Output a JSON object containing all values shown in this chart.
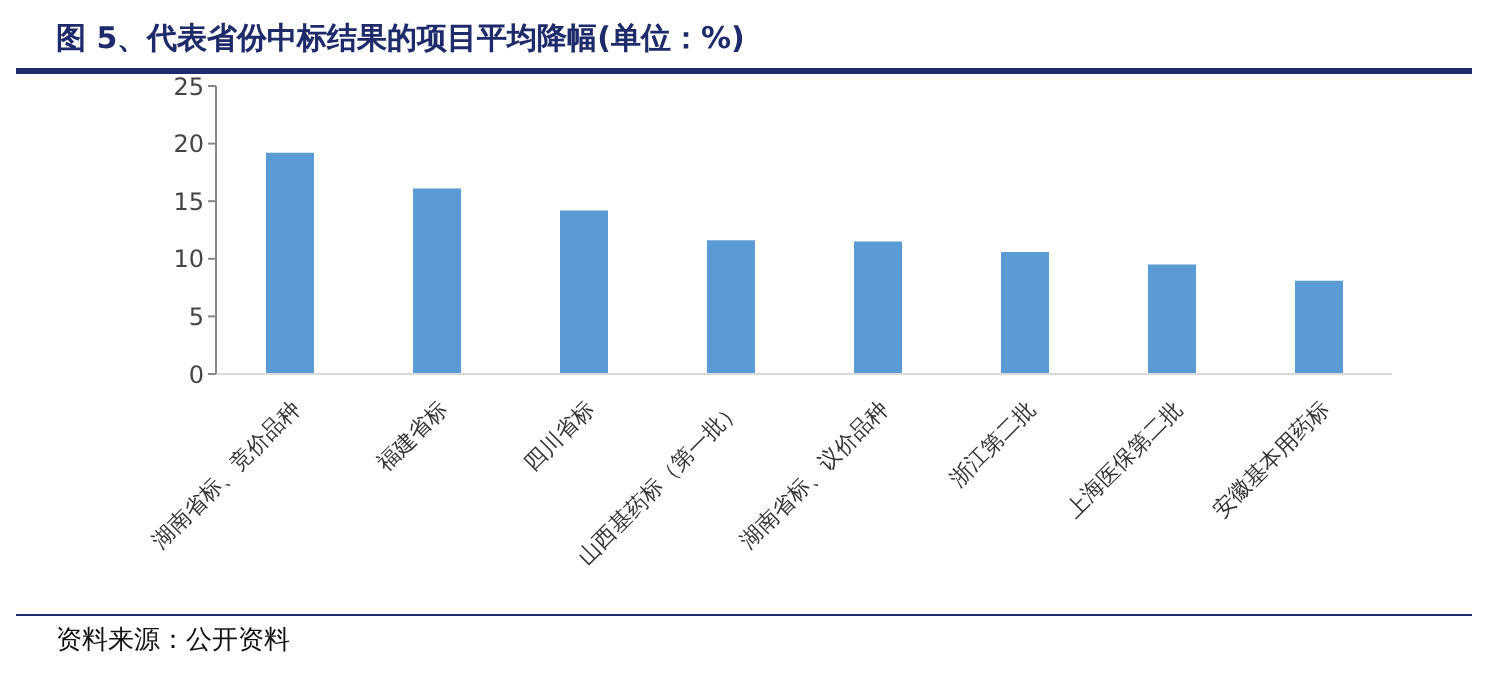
{
  "chart_data": {
    "type": "bar",
    "title": "图 5、代表省份中标结果的项目平均降幅(单位：%)",
    "categories": [
      "湖南省标、竞价品种",
      "福建省标",
      "四川省标",
      "山西基药标（第一批）",
      "湖南省标、议价品种",
      "浙江第二批",
      "上海医保第二批",
      "安徽基本用药标"
    ],
    "values": [
      19.2,
      16.1,
      14.2,
      11.6,
      11.5,
      10.6,
      9.5,
      8.1
    ],
    "color": "#5b9bd5",
    "ylim": [
      0,
      25
    ],
    "yticks": [
      0,
      5,
      10,
      15,
      20,
      25
    ],
    "grid": false,
    "annotations": [
      "资料来源：公开资料"
    ]
  }
}
